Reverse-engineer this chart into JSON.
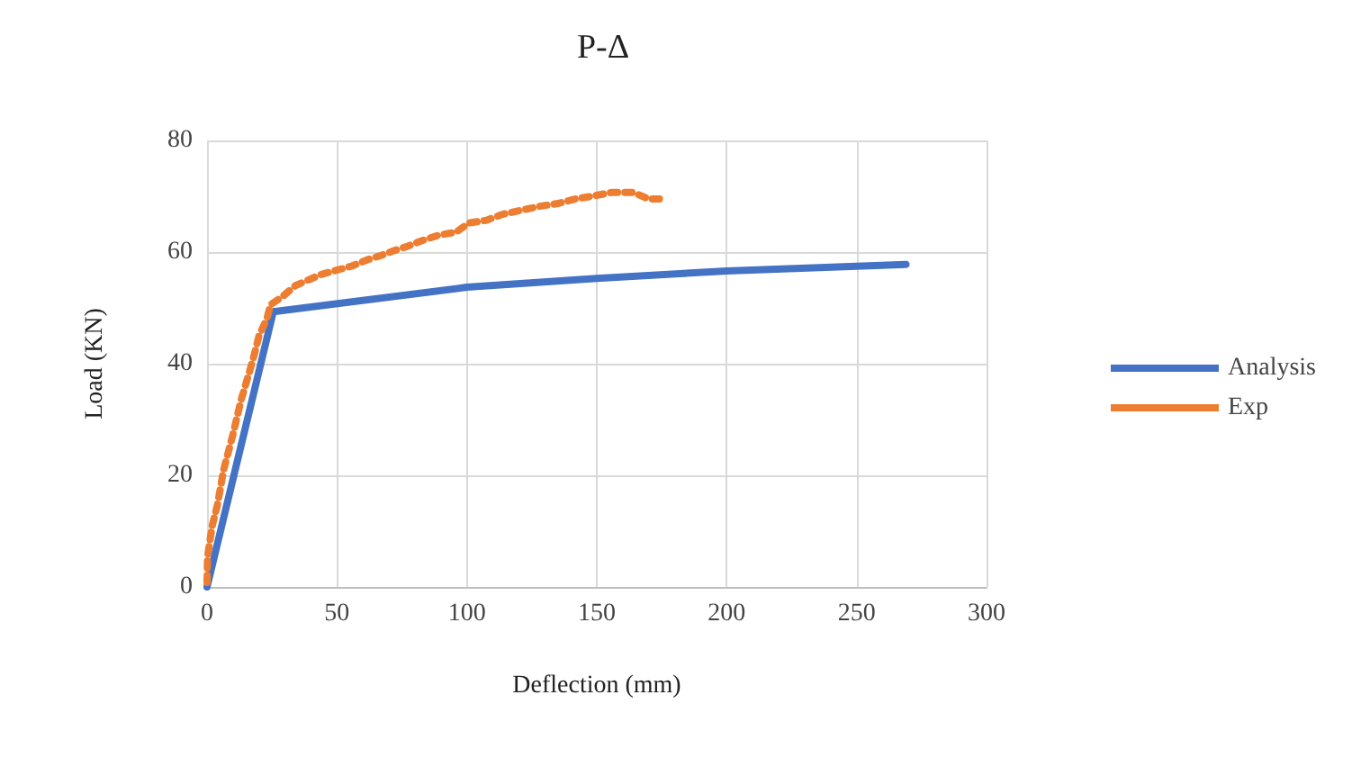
{
  "chart_data": {
    "type": "line",
    "title": "P-Δ",
    "xlabel": "Deflection (mm)",
    "ylabel": "Load (KN)",
    "xlim": [
      0,
      300
    ],
    "xticks": [
      0,
      50,
      100,
      150,
      200,
      250,
      300
    ],
    "ylim": [
      0,
      80
    ],
    "yticks": [
      0,
      20,
      40,
      60,
      80
    ],
    "grid": true,
    "legend": "right",
    "series": [
      {
        "name": "Analysis",
        "color": "#4472c4",
        "line_style": "solid",
        "x": [
          0,
          25.5,
          100,
          150,
          200,
          269
        ],
        "values": [
          0,
          49.3,
          53.7,
          55.3,
          56.6,
          57.8
        ]
      },
      {
        "name": "Exp",
        "color": "#ed7d31",
        "line_style": "dotted",
        "x": [
          0,
          0.2,
          2,
          4,
          6.4,
          9.8,
          13,
          16.6,
          18.4,
          20,
          23,
          24.5,
          29,
          34,
          39,
          44,
          49.5,
          55.7,
          61.6,
          67,
          71.6,
          77,
          82.5,
          89,
          96,
          100.7,
          107.5,
          114,
          121,
          128,
          135,
          141.6,
          148,
          156,
          164,
          170,
          176
        ],
        "values": [
          0.8,
          5.4,
          11,
          14.7,
          21,
          27,
          33.3,
          39,
          42,
          45,
          48,
          50.6,
          52,
          54,
          55,
          56,
          56.7,
          57.5,
          58.6,
          59.4,
          60.2,
          61,
          62,
          63,
          63.6,
          65.2,
          65.7,
          66.8,
          67.5,
          68.2,
          68.7,
          69.5,
          70,
          70.7,
          70.7,
          69.5,
          69.5
        ]
      }
    ]
  }
}
